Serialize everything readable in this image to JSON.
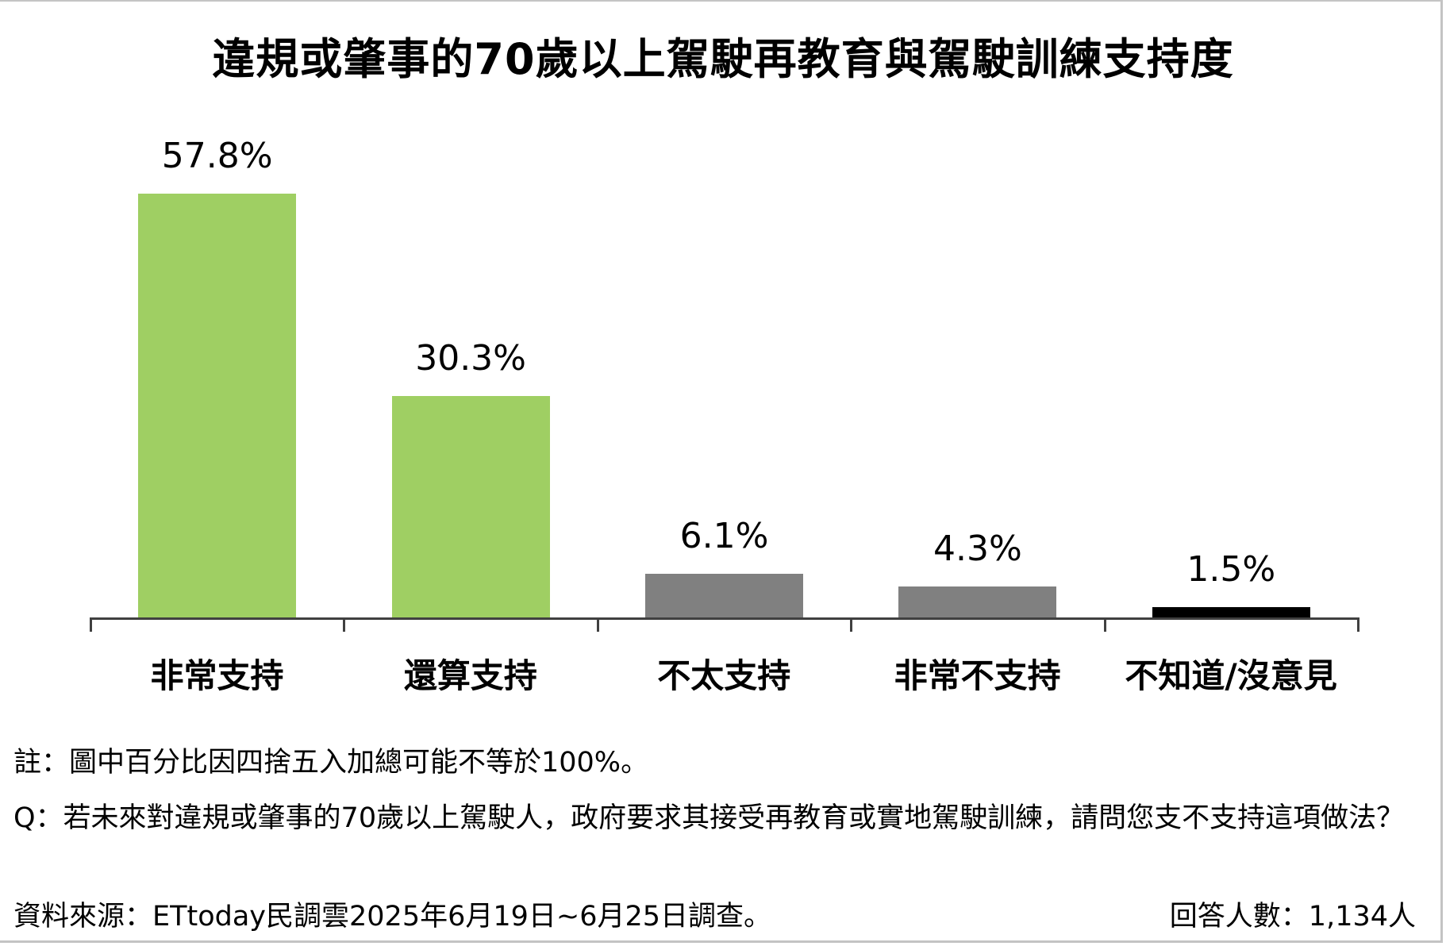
{
  "chart_data": {
    "type": "bar",
    "title": "違規或肇事的70歲以上駕駛再教育與駕駛訓練支持度",
    "categories": [
      "非常支持",
      "還算支持",
      "不太支持",
      "非常不支持",
      "不知道/沒意見"
    ],
    "values": [
      57.8,
      30.3,
      6.1,
      4.3,
      1.5
    ],
    "value_labels": [
      "57.8%",
      "30.3%",
      "6.1%",
      "4.3%",
      "1.5%"
    ],
    "colors": [
      "#9fcf63",
      "#9fcf63",
      "#808080",
      "#808080",
      "#000000"
    ],
    "xlabel": "",
    "ylabel": "",
    "unit": "%",
    "grid": false,
    "legend": null
  },
  "footer": {
    "note": "註：圖中百分比因四捨五入加總可能不等於100%。",
    "question": "Q：若未來對違規或肇事的70歲以上駕駛人，政府要求其接受再教育或實地駕駛訓練，請問您支不支持這項做法？",
    "source": "資料來源：ETtoday民調雲2025年6月19日~6月25日調查。",
    "respondents": "回答人數：1,134人"
  },
  "colors": {
    "axis": "#404040",
    "border": "#c4c4c4",
    "support": "#9fcf63",
    "oppose": "#808080",
    "unknown": "#000000"
  }
}
